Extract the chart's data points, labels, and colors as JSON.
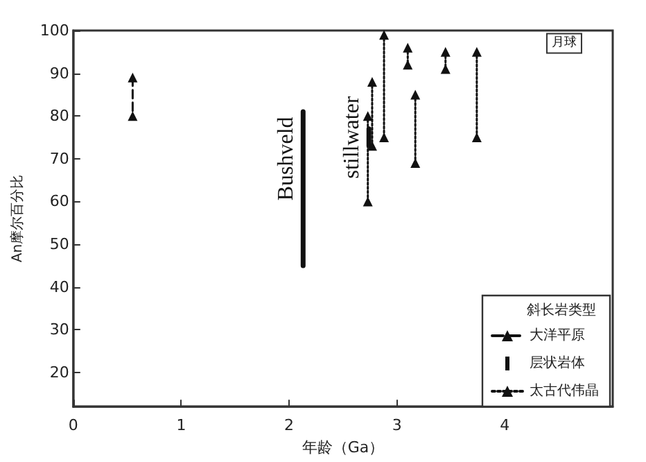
{
  "chart_data": {
    "type": "line",
    "xlabel": "年龄（Ga）",
    "ylabel": "An摩尔百分比",
    "xlim": [
      0,
      5
    ],
    "xticks": [
      0,
      1,
      2,
      3,
      4
    ],
    "ylim": [
      12,
      100
    ],
    "yticks": [
      20,
      30,
      40,
      50,
      60,
      70,
      80,
      90,
      100
    ],
    "grid": false,
    "legend": "bottom right",
    "legend_title": "斜长岩类型",
    "series": [
      {
        "name": "大洋平原",
        "color": "#111111",
        "line_style": "dashed",
        "marker": "triangle",
        "x": [
          0.55,
          0.55
        ],
        "values": [
          89,
          80
        ]
      },
      {
        "name": "层状岩体",
        "color": "#111111",
        "line_style": "solid",
        "marker": "none",
        "x": [
          2.13,
          2.13
        ],
        "values": [
          81,
          45
        ]
      },
      {
        "color": "#111111",
        "line_style": "solid",
        "marker": "none",
        "x": [
          2.74,
          2.74
        ],
        "values": [
          77,
          73
        ]
      },
      {
        "name": "太古代伟晶",
        "color": "#111111",
        "line_style": "dotted",
        "marker": "triangle",
        "x": [
          2.73,
          2.73
        ],
        "values": [
          80,
          60
        ]
      },
      {
        "color": "#111111",
        "line_style": "dotted",
        "marker": "triangle",
        "x": [
          2.77,
          2.77
        ],
        "values": [
          88,
          73
        ]
      },
      {
        "color": "#111111",
        "line_style": "dotted",
        "marker": "triangle",
        "x": [
          2.88,
          2.88
        ],
        "values": [
          99,
          75
        ]
      },
      {
        "color": "#111111",
        "line_style": "dotted",
        "marker": "triangle",
        "x": [
          3.1,
          3.1
        ],
        "values": [
          96,
          92
        ]
      },
      {
        "color": "#111111",
        "line_style": "dotted",
        "marker": "triangle",
        "x": [
          3.17,
          3.17
        ],
        "values": [
          85,
          69
        ]
      },
      {
        "color": "#111111",
        "line_style": "dotted",
        "marker": "triangle",
        "x": [
          3.45,
          3.45
        ],
        "values": [
          95,
          91
        ]
      },
      {
        "color": "#111111",
        "line_style": "dotted",
        "marker": "triangle",
        "x": [
          3.74,
          3.74
        ],
        "values": [
          95,
          75
        ]
      }
    ],
    "annotations": [
      {
        "text": "Bushveld",
        "x": 2.13,
        "y": 70
      },
      {
        "text": "stillwater",
        "x": 2.74,
        "y": 75
      },
      {
        "text": "月球",
        "x": 4.55,
        "y": 97
      }
    ]
  }
}
